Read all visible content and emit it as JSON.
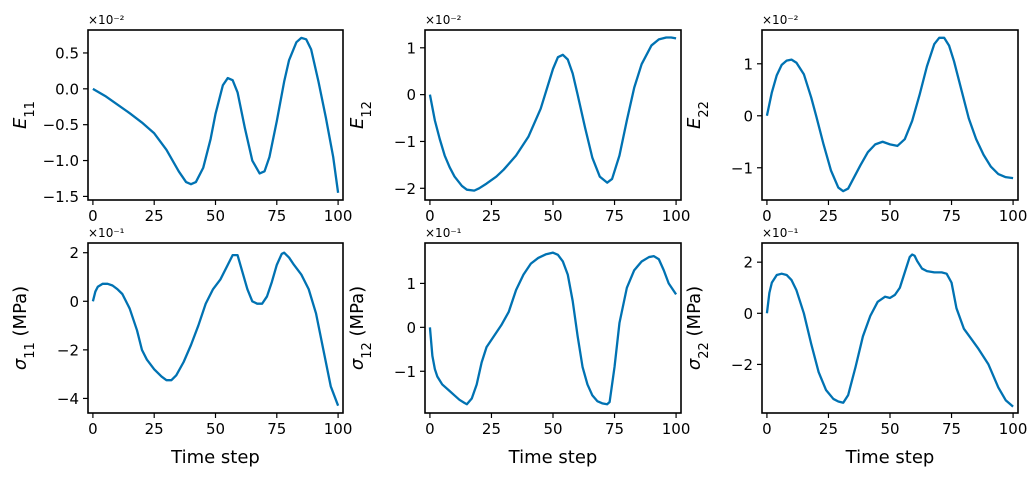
{
  "chart_data": [
    {
      "type": "line",
      "ylabel": "E_11",
      "ylabel_main": "E",
      "ylabel_sub": "11",
      "ylabel_unit": "",
      "multiplier": "×10⁻²",
      "xlabel": "",
      "xlim": [
        -2,
        102
      ],
      "ylim": [
        -1.55,
        0.82
      ],
      "xticks": [
        0,
        25,
        50,
        75,
        100
      ],
      "yticks": [
        -1.5,
        -1.0,
        -0.5,
        0.0,
        0.5
      ],
      "ytick_labels": [
        "−1.5",
        "−1.0",
        "−0.5",
        "0.0",
        "0.5"
      ],
      "color": "#0072B2",
      "x": [
        0,
        5,
        10,
        15,
        20,
        25,
        30,
        35,
        38,
        40,
        42,
        45,
        48,
        50,
        53,
        55,
        57,
        59,
        62,
        65,
        68,
        70,
        72,
        75,
        78,
        80,
        83,
        85,
        87,
        89,
        92,
        95,
        98,
        100
      ],
      "y": [
        0.0,
        -0.1,
        -0.22,
        -0.34,
        -0.47,
        -0.62,
        -0.85,
        -1.15,
        -1.3,
        -1.33,
        -1.3,
        -1.1,
        -0.7,
        -0.35,
        0.05,
        0.15,
        0.12,
        -0.05,
        -0.55,
        -1.0,
        -1.18,
        -1.15,
        -0.95,
        -0.45,
        0.1,
        0.4,
        0.65,
        0.71,
        0.69,
        0.55,
        0.1,
        -0.4,
        -0.95,
        -1.45
      ]
    },
    {
      "type": "line",
      "ylabel": "E_12",
      "ylabel_main": "E",
      "ylabel_sub": "12",
      "ylabel_unit": "",
      "multiplier": "×10⁻²",
      "xlabel": "",
      "xlim": [
        -2,
        102
      ],
      "ylim": [
        -2.25,
        1.38
      ],
      "xticks": [
        0,
        25,
        50,
        75,
        100
      ],
      "yticks": [
        -2,
        -1,
        0,
        1
      ],
      "ytick_labels": [
        "−2",
        "−1",
        "0",
        "1"
      ],
      "color": "#0072B2",
      "x": [
        0,
        2,
        4,
        6,
        8,
        10,
        13,
        15,
        18,
        20,
        23,
        27,
        30,
        35,
        40,
        45,
        50,
        52,
        54,
        56,
        58,
        60,
        63,
        66,
        69,
        72,
        74,
        77,
        80,
        83,
        86,
        90,
        93,
        96,
        98,
        100
      ],
      "y": [
        0.0,
        -0.55,
        -0.95,
        -1.3,
        -1.55,
        -1.75,
        -1.95,
        -2.03,
        -2.05,
        -2.0,
        -1.9,
        -1.75,
        -1.6,
        -1.3,
        -0.9,
        -0.3,
        0.55,
        0.8,
        0.85,
        0.75,
        0.45,
        0.0,
        -0.7,
        -1.35,
        -1.75,
        -1.88,
        -1.8,
        -1.3,
        -0.55,
        0.15,
        0.65,
        1.05,
        1.18,
        1.22,
        1.22,
        1.2
      ]
    },
    {
      "type": "line",
      "ylabel": "E_22",
      "ylabel_main": "E",
      "ylabel_sub": "22",
      "ylabel_unit": "",
      "multiplier": "×10⁻²",
      "xlabel": "",
      "xlim": [
        -2,
        102
      ],
      "ylim": [
        -1.62,
        1.65
      ],
      "xticks": [
        0,
        25,
        50,
        75,
        100
      ],
      "yticks": [
        -1,
        0,
        1
      ],
      "ytick_labels": [
        "−1",
        "0",
        "1"
      ],
      "color": "#0072B2",
      "x": [
        0,
        2,
        4,
        6,
        8,
        10,
        12,
        15,
        18,
        20,
        23,
        26,
        29,
        31,
        33,
        35,
        38,
        41,
        44,
        47,
        50,
        53,
        56,
        59,
        62,
        65,
        68,
        70,
        72,
        74,
        76,
        79,
        82,
        85,
        88,
        91,
        94,
        97,
        100
      ],
      "y": [
        0.0,
        0.45,
        0.78,
        0.98,
        1.06,
        1.08,
        1.02,
        0.8,
        0.35,
        0.0,
        -0.55,
        -1.05,
        -1.38,
        -1.45,
        -1.4,
        -1.22,
        -0.95,
        -0.7,
        -0.55,
        -0.5,
        -0.55,
        -0.58,
        -0.45,
        -0.1,
        0.4,
        0.95,
        1.38,
        1.5,
        1.5,
        1.35,
        1.05,
        0.5,
        -0.05,
        -0.45,
        -0.75,
        -0.98,
        -1.12,
        -1.18,
        -1.2
      ]
    },
    {
      "type": "line",
      "ylabel": "σ_11 (MPa)",
      "ylabel_main": "σ",
      "ylabel_sub": "11",
      "ylabel_unit": " (MPa)",
      "multiplier": "×10⁻¹",
      "xlabel": "Time step",
      "xlim": [
        -2,
        102
      ],
      "ylim": [
        -4.6,
        2.4
      ],
      "xticks": [
        0,
        25,
        50,
        75,
        100
      ],
      "yticks": [
        -4,
        -2,
        0,
        2
      ],
      "ytick_labels": [
        "−4",
        "−2",
        "0",
        "2"
      ],
      "color": "#0072B2",
      "x": [
        0,
        1,
        2,
        4,
        6,
        8,
        10,
        12,
        15,
        18,
        20,
        22,
        25,
        28,
        30,
        32,
        34,
        37,
        40,
        43,
        46,
        49,
        52,
        55,
        57,
        59,
        61,
        63,
        65,
        67,
        69,
        71,
        73,
        75,
        77,
        78,
        80,
        82,
        85,
        88,
        91,
        94,
        97,
        100
      ],
      "y": [
        0.0,
        0.4,
        0.6,
        0.72,
        0.72,
        0.65,
        0.5,
        0.3,
        -0.3,
        -1.2,
        -2.0,
        -2.4,
        -2.8,
        -3.1,
        -3.25,
        -3.25,
        -3.05,
        -2.5,
        -1.8,
        -1.0,
        -0.1,
        0.5,
        0.9,
        1.5,
        1.9,
        1.9,
        1.2,
        0.5,
        0.0,
        -0.1,
        -0.1,
        0.2,
        0.8,
        1.5,
        1.95,
        2.0,
        1.8,
        1.5,
        1.1,
        0.5,
        -0.5,
        -2.0,
        -3.5,
        -4.3
      ]
    },
    {
      "type": "line",
      "ylabel": "σ_12 (MPa)",
      "ylabel_main": "σ",
      "ylabel_sub": "12",
      "ylabel_unit": " (MPa)",
      "multiplier": "×10⁻¹",
      "xlabel": "Time step",
      "xlim": [
        -2,
        102
      ],
      "ylim": [
        -1.95,
        1.92
      ],
      "xticks": [
        0,
        25,
        50,
        75,
        100
      ],
      "yticks": [
        -1,
        0,
        1
      ],
      "ytick_labels": [
        "−1",
        "0",
        "1"
      ],
      "color": "#0072B2",
      "x": [
        0,
        1,
        2,
        3,
        5,
        8,
        10,
        12,
        14,
        15,
        17,
        19,
        21,
        23,
        26,
        29,
        32,
        35,
        38,
        41,
        44,
        47,
        50,
        52,
        54,
        56,
        58,
        60,
        62,
        64,
        66,
        68,
        70,
        72,
        73,
        75,
        77,
        80,
        83,
        86,
        89,
        91,
        93,
        95,
        97,
        100
      ],
      "y": [
        0.0,
        -0.65,
        -0.95,
        -1.12,
        -1.3,
        -1.45,
        -1.55,
        -1.65,
        -1.72,
        -1.75,
        -1.62,
        -1.3,
        -0.8,
        -0.45,
        -0.2,
        0.05,
        0.35,
        0.85,
        1.2,
        1.45,
        1.58,
        1.66,
        1.7,
        1.65,
        1.5,
        1.2,
        0.6,
        -0.2,
        -0.9,
        -1.3,
        -1.55,
        -1.68,
        -1.73,
        -1.75,
        -1.7,
        -0.9,
        0.1,
        0.9,
        1.3,
        1.5,
        1.6,
        1.62,
        1.55,
        1.3,
        1.0,
        0.75
      ]
    },
    {
      "type": "line",
      "ylabel": "σ_22 (MPa)",
      "ylabel_main": "σ",
      "ylabel_sub": "22",
      "ylabel_unit": " (MPa)",
      "multiplier": "×10⁻¹",
      "xlabel": "Time step",
      "xlim": [
        -2,
        102
      ],
      "ylim": [
        -3.9,
        2.75
      ],
      "xticks": [
        0,
        25,
        50,
        75,
        100
      ],
      "yticks": [
        -2,
        0,
        2
      ],
      "ytick_labels": [
        "−2",
        "0",
        "2"
      ],
      "color": "#0072B2",
      "x": [
        0,
        1,
        2,
        4,
        6,
        8,
        10,
        12,
        15,
        18,
        21,
        24,
        27,
        29,
        31,
        33,
        36,
        39,
        42,
        45,
        48,
        50,
        52,
        54,
        56,
        58,
        59,
        60,
        61,
        63,
        65,
        68,
        71,
        73,
        75,
        77,
        80,
        83,
        86,
        90,
        94,
        97,
        100
      ],
      "y": [
        0.0,
        0.8,
        1.2,
        1.5,
        1.55,
        1.5,
        1.3,
        0.9,
        0.0,
        -1.2,
        -2.3,
        -3.0,
        -3.35,
        -3.45,
        -3.5,
        -3.2,
        -2.1,
        -0.9,
        -0.1,
        0.45,
        0.65,
        0.6,
        0.72,
        1.0,
        1.6,
        2.2,
        2.3,
        2.25,
        2.05,
        1.75,
        1.65,
        1.6,
        1.6,
        1.55,
        1.2,
        0.2,
        -0.6,
        -1.0,
        -1.4,
        -2.0,
        -2.9,
        -3.4,
        -3.65
      ]
    }
  ]
}
